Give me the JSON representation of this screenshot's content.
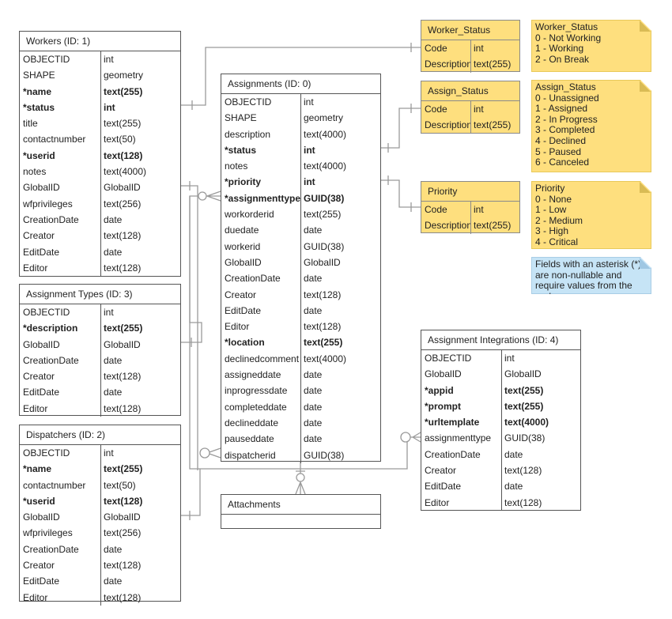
{
  "tables": {
    "workers": {
      "title": "Workers (ID: 1)",
      "rows": [
        [
          "OBJECTID",
          "int",
          0
        ],
        [
          "SHAPE",
          "geometry",
          0
        ],
        [
          "*name",
          "text(255)",
          1
        ],
        [
          "*status",
          "int",
          1
        ],
        [
          "title",
          "text(255)",
          0
        ],
        [
          "contactnumber",
          "text(50)",
          0
        ],
        [
          "*userid",
          "text(128)",
          1
        ],
        [
          "notes",
          "text(4000)",
          0
        ],
        [
          "GlobalID",
          "GlobalID",
          0
        ],
        [
          "wfprivileges",
          "text(256)",
          0
        ],
        [
          "CreationDate",
          "date",
          0
        ],
        [
          "Creator",
          "text(128)",
          0
        ],
        [
          "EditDate",
          "date",
          0
        ],
        [
          "Editor",
          "text(128)",
          0
        ]
      ]
    },
    "assignment_types": {
      "title": "Assignment Types (ID: 3)",
      "rows": [
        [
          "OBJECTID",
          "int",
          0
        ],
        [
          "*description",
          "text(255)",
          1
        ],
        [
          "GlobalID",
          "GlobalID",
          0
        ],
        [
          "CreationDate",
          "date",
          0
        ],
        [
          "Creator",
          "text(128)",
          0
        ],
        [
          "EditDate",
          "date",
          0
        ],
        [
          "Editor",
          "text(128)",
          0
        ]
      ]
    },
    "dispatchers": {
      "title": "Dispatchers (ID: 2)",
      "rows": [
        [
          "OBJECTID",
          "int",
          0
        ],
        [
          "*name",
          "text(255)",
          1
        ],
        [
          "contactnumber",
          "text(50)",
          0
        ],
        [
          "*userid",
          "text(128)",
          1
        ],
        [
          "GlobalID",
          "GlobalID",
          0
        ],
        [
          "wfprivileges",
          "text(256)",
          0
        ],
        [
          "CreationDate",
          "date",
          0
        ],
        [
          "Creator",
          "text(128)",
          0
        ],
        [
          "EditDate",
          "date",
          0
        ],
        [
          "Editor",
          "text(128)",
          0
        ]
      ]
    },
    "assignments": {
      "title": "Assignments (ID: 0)",
      "rows": [
        [
          "OBJECTID",
          "int",
          0
        ],
        [
          "SHAPE",
          "geometry",
          0
        ],
        [
          "description",
          "text(4000)",
          0
        ],
        [
          "*status",
          "int",
          1
        ],
        [
          "notes",
          "text(4000)",
          0
        ],
        [
          "*priority",
          "int",
          1
        ],
        [
          "*assignmenttype",
          "GUID(38)",
          1
        ],
        [
          "workorderid",
          "text(255)",
          0
        ],
        [
          "duedate",
          "date",
          0
        ],
        [
          "workerid",
          "GUID(38)",
          0
        ],
        [
          "GlobalID",
          "GlobalID",
          0
        ],
        [
          "CreationDate",
          "date",
          0
        ],
        [
          "Creator",
          "text(128)",
          0
        ],
        [
          "EditDate",
          "date",
          0
        ],
        [
          "Editor",
          "text(128)",
          0
        ],
        [
          "*location",
          "text(255)",
          1
        ],
        [
          "declinedcomment",
          "text(4000)",
          0
        ],
        [
          "assigneddate",
          "date",
          0
        ],
        [
          "inprogressdate",
          "date",
          0
        ],
        [
          "completeddate",
          "date",
          0
        ],
        [
          "declineddate",
          "date",
          0
        ],
        [
          "pauseddate",
          "date",
          0
        ],
        [
          "dispatcherid",
          "GUID(38)",
          0
        ]
      ]
    },
    "attachments": {
      "title": "Attachments",
      "rows": []
    },
    "assignment_integrations": {
      "title": "Assignment Integrations (ID: 4)",
      "rows": [
        [
          "OBJECTID",
          "int",
          0
        ],
        [
          "GlobalID",
          "GlobalID",
          0
        ],
        [
          "*appid",
          "text(255)",
          1
        ],
        [
          "*prompt",
          "text(255)",
          1
        ],
        [
          "*urltemplate",
          "text(4000)",
          1
        ],
        [
          "assignmenttype",
          "GUID(38)",
          0
        ],
        [
          "CreationDate",
          "date",
          0
        ],
        [
          "Creator",
          "text(128)",
          0
        ],
        [
          "EditDate",
          "date",
          0
        ],
        [
          "Editor",
          "text(128)",
          0
        ]
      ]
    },
    "worker_status": {
      "title": "Worker_Status",
      "rows": [
        [
          "Code",
          "int",
          0
        ],
        [
          "Description",
          "text(255)",
          0
        ]
      ]
    },
    "assign_status": {
      "title": "Assign_Status",
      "rows": [
        [
          "Code",
          "int",
          0
        ],
        [
          "Description",
          "text(255)",
          0
        ]
      ]
    },
    "priority": {
      "title": "Priority",
      "rows": [
        [
          "Code",
          "int",
          0
        ],
        [
          "Description",
          "text(255)",
          0
        ]
      ]
    }
  },
  "notes": {
    "worker_status": [
      "Worker_Status",
      "0 - Not Working",
      "1 - Working",
      "2 - On Break"
    ],
    "assign_status": [
      "Assign_Status",
      "0 - Unassigned",
      "1 - Assigned",
      "2 - In Progress",
      "3 - Completed",
      "4 - Declined",
      "5 - Paused",
      "6 - Canceled"
    ],
    "priority": [
      "Priority",
      "0 - None",
      "1 - Low",
      "2 - Medium",
      "3 - High",
      "4 - Critical"
    ],
    "info": [
      "Fields with an asterisk (*) are non-nullable and require values from the end user."
    ]
  },
  "colors": {
    "domain_fill": "#fedf7e",
    "info_fill": "#c6e4f6",
    "line": "#999999"
  }
}
